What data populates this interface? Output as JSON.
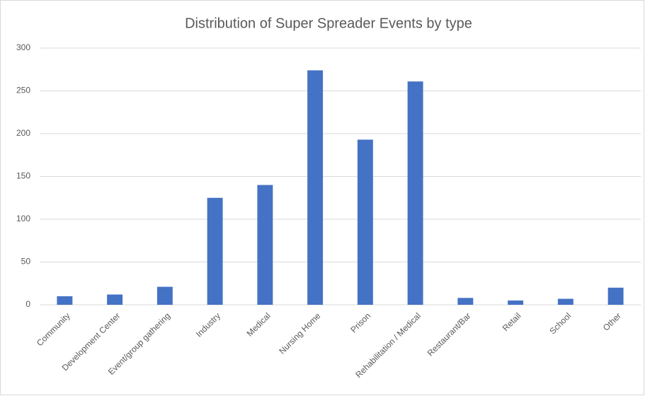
{
  "chart_data": {
    "type": "bar",
    "title": "Distribution of Super Spreader Events by type",
    "categories": [
      "Community",
      "Development Center",
      "Event/group gathering",
      "Industry",
      "Medical",
      "Nursing Home",
      "Prison",
      "Rehabilitation / Medical",
      "Restaurant/Bar",
      "Retail",
      "School",
      "Other"
    ],
    "values": [
      10,
      12,
      21,
      125,
      140,
      274,
      193,
      261,
      8,
      5,
      7,
      20
    ],
    "color": "#4472c4",
    "ylim": [
      0,
      300
    ],
    "yticks": [
      0,
      50,
      100,
      150,
      200,
      250,
      300
    ],
    "grid": true
  }
}
